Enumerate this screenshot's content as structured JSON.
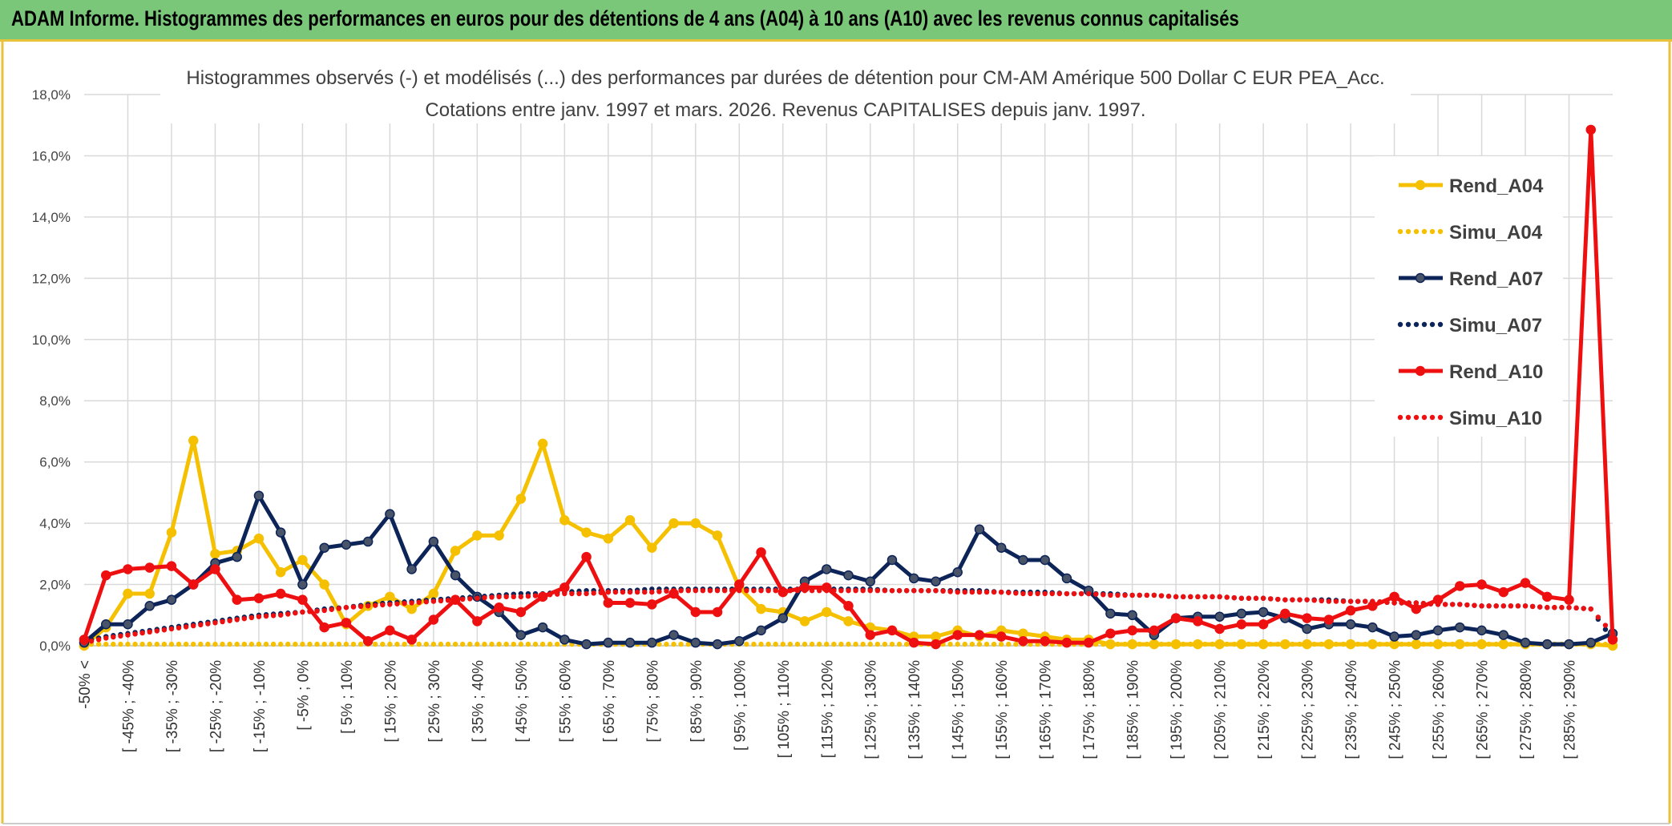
{
  "header": {
    "title": "ADAM Informe. Histogrammes des performances en euros pour des détentions de 4 ans (A04) à 10 ans (A10) avec les revenus connus capitalisés"
  },
  "chart_data": {
    "type": "line",
    "title_line1": "Histogrammes observés (-) et modélisés (...) des performances par durées de détention pour CM-AM Amérique 500 Dollar C EUR PEA_Acc.",
    "title_line2": "Cotations entre janv. 1997 et mars. 2026. Revenus CAPITALISES depuis janv. 1997.",
    "ylim": [
      0,
      18
    ],
    "yticks": [
      "0,0%",
      "2,0%",
      "4,0%",
      "6,0%",
      "8,0%",
      "10,0%",
      "12,0%",
      "14,0%",
      "16,0%",
      "18,0%"
    ],
    "xlabels_visible": [
      "-50% <",
      "[ -45% ; -40%",
      "[ -35% ; -30%",
      "[ -25% ; -20%",
      "[ -15% ; -10%",
      "[ -5% ; 0%",
      "[ 5% ; 10%",
      "[ 15% ; 20%",
      "[ 25% ; 30%",
      "[ 35% ; 40%",
      "[ 45% ; 50%",
      "[ 55% ; 60%",
      "[ 65% ; 70%",
      "[ 75% ; 80%",
      "[ 85% ; 90%",
      "[ 95% ; 100%",
      "[ 105% ; 110%",
      "[ 115% ; 120%",
      "[ 125% ; 130%",
      "[ 135% ; 140%",
      "[ 145% ; 150%",
      "[ 155% ; 160%",
      "[ 165% ; 170%",
      "[ 175% ; 180%",
      "[ 185% ; 190%",
      "[ 195% ; 200%",
      "[ 205% ; 210%",
      "[ 215% ; 220%",
      "[ 225% ; 230%",
      "[ 235% ; 240%",
      "[ 245% ; 250%",
      "[ 255% ; 260%",
      "[ 265% ; 270%",
      "[ 275% ; 280%",
      "[ 285% ; 290%"
    ],
    "legend": [
      "Rend_A04",
      "Simu_A04",
      "Rend_A07",
      "Simu_A07",
      "Rend_A10",
      "Simu_A10"
    ],
    "series": [
      {
        "name": "Rend_A04",
        "color": "#f5c000",
        "style": "solid",
        "values": [
          0.0,
          0.6,
          1.7,
          1.7,
          3.7,
          6.7,
          3.0,
          3.1,
          3.5,
          2.4,
          2.8,
          2.0,
          0.7,
          1.3,
          1.6,
          1.2,
          1.7,
          3.1,
          3.6,
          3.6,
          4.8,
          6.6,
          4.1,
          3.7,
          3.5,
          4.1,
          3.2,
          4.0,
          4.0,
          3.6,
          1.9,
          1.2,
          1.1,
          0.8,
          1.1,
          0.8,
          0.6,
          0.5,
          0.3,
          0.3,
          0.5,
          0.3,
          0.5,
          0.4,
          0.3,
          0.2,
          0.2,
          0.05,
          0.05,
          0.05,
          0.05,
          0.05,
          0.05,
          0.05,
          0.05,
          0.05,
          0.05,
          0.05,
          0.05,
          0.05,
          0.05,
          0.05,
          0.05,
          0.05,
          0.05,
          0.05,
          0.05,
          0.05,
          0.05,
          0.05,
          0.0
        ]
      },
      {
        "name": "Simu_A04",
        "color": "#f5c000",
        "style": "dotted",
        "values": [
          0.05,
          0.05,
          0.05,
          0.05,
          0.05,
          0.05,
          0.05,
          0.05,
          0.05,
          0.05,
          0.05,
          0.05,
          0.05,
          0.05,
          0.05,
          0.05,
          0.05,
          0.05,
          0.05,
          0.05,
          0.05,
          0.05,
          0.05,
          0.05,
          0.05,
          0.05,
          0.05,
          0.05,
          0.05,
          0.05,
          0.05,
          0.05,
          0.05,
          0.05,
          0.05,
          0.05,
          0.05,
          0.05,
          0.05,
          0.05,
          0.05,
          0.05,
          0.05,
          0.05,
          0.05,
          0.05,
          0.05,
          0.05,
          0.05,
          0.05,
          0.05,
          0.05,
          0.05,
          0.05,
          0.05,
          0.05,
          0.05,
          0.05,
          0.05,
          0.05,
          0.05,
          0.05,
          0.05,
          0.05,
          0.05,
          0.05,
          0.05,
          0.05,
          0.05,
          0.05,
          0.05
        ]
      },
      {
        "name": "Rend_A07",
        "color": "#0d2459",
        "style": "solid",
        "values": [
          0.1,
          0.7,
          0.7,
          1.3,
          1.5,
          2.0,
          2.7,
          2.9,
          4.9,
          3.7,
          2.0,
          3.2,
          3.3,
          3.4,
          4.3,
          2.5,
          3.4,
          2.3,
          1.6,
          1.1,
          0.35,
          0.6,
          0.2,
          0.05,
          0.1,
          0.1,
          0.1,
          0.35,
          0.1,
          0.05,
          0.15,
          0.5,
          0.9,
          2.1,
          2.5,
          2.3,
          2.1,
          2.8,
          2.2,
          2.1,
          2.4,
          3.8,
          3.2,
          2.8,
          2.8,
          2.2,
          1.8,
          1.05,
          1.0,
          0.35,
          0.9,
          0.95,
          0.95,
          1.05,
          1.1,
          0.9,
          0.55,
          0.7,
          0.7,
          0.6,
          0.3,
          0.35,
          0.5,
          0.6,
          0.5,
          0.35,
          0.1,
          0.05,
          0.05,
          0.1,
          0.4
        ]
      },
      {
        "name": "Simu_A07",
        "color": "#0d2459",
        "style": "dotted",
        "values": [
          0.15,
          0.3,
          0.4,
          0.5,
          0.6,
          0.7,
          0.8,
          0.9,
          1.0,
          1.05,
          1.1,
          1.2,
          1.25,
          1.35,
          1.4,
          1.45,
          1.5,
          1.55,
          1.6,
          1.65,
          1.7,
          1.7,
          1.75,
          1.8,
          1.8,
          1.8,
          1.85,
          1.85,
          1.85,
          1.85,
          1.85,
          1.85,
          1.85,
          1.85,
          1.85,
          1.85,
          1.85,
          1.8,
          1.8,
          1.8,
          1.8,
          1.8,
          1.75,
          1.75,
          1.75,
          1.7,
          1.7,
          1.7,
          1.65,
          1.65,
          1.6,
          1.6,
          1.6,
          1.55,
          1.55,
          1.5,
          1.5,
          1.5,
          1.45,
          1.45,
          1.4,
          1.4,
          1.35,
          1.35,
          1.3,
          1.3,
          1.3,
          1.25,
          1.25,
          1.2,
          0.2
        ]
      },
      {
        "name": "Rend_A10",
        "color": "#ee1010",
        "style": "solid",
        "values": [
          0.2,
          2.3,
          2.5,
          2.55,
          2.6,
          2.0,
          2.5,
          1.5,
          1.55,
          1.7,
          1.5,
          0.6,
          0.75,
          0.15,
          0.5,
          0.2,
          0.85,
          1.5,
          0.8,
          1.25,
          1.1,
          1.6,
          1.9,
          2.9,
          1.4,
          1.4,
          1.35,
          1.7,
          1.1,
          1.1,
          2.0,
          3.05,
          1.75,
          1.9,
          1.9,
          1.3,
          0.35,
          0.5,
          0.1,
          0.05,
          0.35,
          0.35,
          0.3,
          0.15,
          0.15,
          0.1,
          0.1,
          0.4,
          0.5,
          0.5,
          0.9,
          0.8,
          0.55,
          0.7,
          0.7,
          1.05,
          0.9,
          0.85,
          1.15,
          1.3,
          1.6,
          1.2,
          1.5,
          1.95,
          2.0,
          1.75,
          2.05,
          1.6,
          1.5,
          16.85,
          0.2
        ]
      },
      {
        "name": "Simu_A10",
        "color": "#ee1010",
        "style": "dotted",
        "values": [
          0.1,
          0.25,
          0.35,
          0.45,
          0.55,
          0.65,
          0.75,
          0.85,
          0.95,
          1.0,
          1.1,
          1.15,
          1.25,
          1.3,
          1.35,
          1.4,
          1.45,
          1.5,
          1.55,
          1.6,
          1.6,
          1.65,
          1.7,
          1.7,
          1.75,
          1.75,
          1.75,
          1.8,
          1.8,
          1.8,
          1.8,
          1.8,
          1.8,
          1.8,
          1.8,
          1.8,
          1.8,
          1.8,
          1.8,
          1.8,
          1.75,
          1.75,
          1.75,
          1.7,
          1.7,
          1.7,
          1.7,
          1.65,
          1.65,
          1.65,
          1.6,
          1.6,
          1.6,
          1.55,
          1.55,
          1.5,
          1.5,
          1.45,
          1.45,
          1.45,
          1.4,
          1.4,
          1.35,
          1.35,
          1.3,
          1.3,
          1.3,
          1.25,
          1.25,
          1.2,
          0.4
        ]
      }
    ]
  }
}
